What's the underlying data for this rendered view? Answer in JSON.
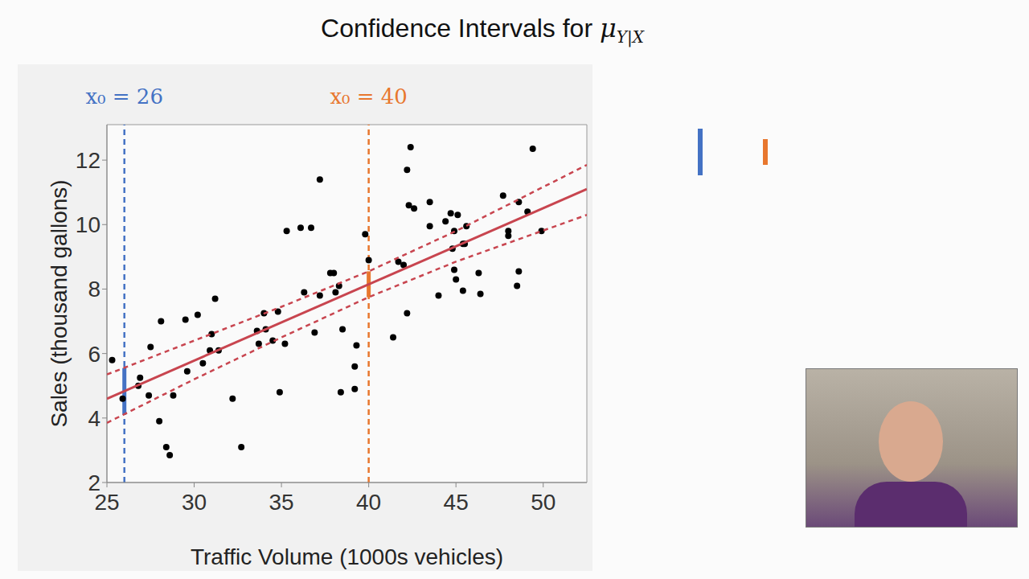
{
  "chart_data": {
    "type": "scatter",
    "title": "Confidence Intervals for μY|X",
    "x_label": "Traffic Volume (1000s vehicles)",
    "y_label": "Sales (thousand gallons)",
    "xlim": [
      25,
      52.5
    ],
    "ylim": [
      2,
      13.1
    ],
    "xticks": [
      25,
      30,
      35,
      40,
      45,
      50
    ],
    "yticks": [
      2,
      4,
      6,
      8,
      10,
      12
    ],
    "series": [
      {
        "type": "scatter",
        "color": "#000000",
        "marker": "circle",
        "x": [
          25.3,
          25.9,
          26.9,
          26.8,
          27.5,
          27.4,
          28.0,
          28.1,
          28.4,
          28.6,
          28.8,
          29.5,
          29.6,
          30.2,
          30.5,
          30.9,
          31.0,
          31.2,
          31.4,
          32.2,
          32.7,
          33.6,
          33.7,
          34.0,
          34.1,
          34.5,
          34.8,
          34.9,
          35.2,
          35.3,
          36.1,
          36.3,
          36.7,
          36.9,
          37.2,
          37.2,
          37.8,
          38.0,
          38.1,
          38.3,
          38.4,
          38.5,
          39.2,
          39.2,
          39.3,
          39.8,
          40.0,
          41.4,
          41.7,
          42.0,
          42.2,
          42.2,
          42.4,
          42.3,
          42.6,
          43.5,
          43.5,
          44.0,
          44.4,
          44.7,
          44.8,
          44.9,
          44.9,
          45.0,
          45.1,
          45.4,
          45.4,
          45.5,
          45.6,
          46.3,
          46.4,
          47.7,
          48.0,
          48.0,
          48.5,
          48.6,
          48.6,
          49.1,
          49.4,
          49.9
        ],
        "values": [
          5.8,
          4.6,
          5.25,
          5.0,
          6.2,
          4.7,
          3.9,
          7.0,
          3.1,
          2.85,
          4.7,
          7.05,
          5.45,
          7.2,
          5.7,
          6.1,
          6.6,
          7.7,
          6.1,
          4.6,
          3.1,
          6.7,
          6.3,
          7.25,
          6.75,
          6.4,
          7.3,
          4.8,
          6.3,
          9.8,
          9.9,
          7.9,
          9.9,
          6.65,
          7.8,
          11.4,
          8.5,
          8.5,
          7.9,
          8.1,
          4.8,
          6.75,
          4.9,
          5.6,
          6.25,
          9.7,
          8.9,
          6.5,
          8.85,
          8.75,
          11.7,
          7.25,
          12.4,
          10.6,
          10.5,
          10.7,
          9.95,
          7.8,
          10.1,
          10.35,
          9.25,
          9.8,
          8.6,
          8.3,
          10.3,
          9.4,
          7.95,
          9.4,
          9.95,
          8.5,
          7.85,
          10.9,
          9.8,
          9.65,
          8.1,
          10.7,
          8.55,
          10.4,
          12.35,
          9.8
        ]
      },
      {
        "type": "line",
        "color": "#c8454f",
        "line_style": "solid",
        "x": [
          25,
          52.5
        ],
        "values": [
          4.6,
          11.1
        ]
      },
      {
        "type": "line",
        "color": "#c8454f",
        "line_style": "dashed",
        "x": [
          25,
          30,
          35,
          40,
          45,
          52.5
        ],
        "values": [
          5.35,
          6.4,
          7.45,
          8.55,
          9.8,
          11.85
        ]
      },
      {
        "type": "line",
        "color": "#c8454f",
        "line_style": "dashed",
        "x": [
          25,
          30,
          35,
          40,
          45,
          52.5
        ],
        "values": [
          3.85,
          5.2,
          6.5,
          7.75,
          8.85,
          10.3
        ]
      }
    ],
    "intervals": [
      {
        "x": 26,
        "label": "x₀ = 26",
        "low": 4.1,
        "high": 5.55,
        "color": "#4472c4"
      },
      {
        "x": 40,
        "label": "x₀ = 40",
        "low": 7.75,
        "high": 8.55,
        "color": "#e8772e"
      }
    ]
  }
}
